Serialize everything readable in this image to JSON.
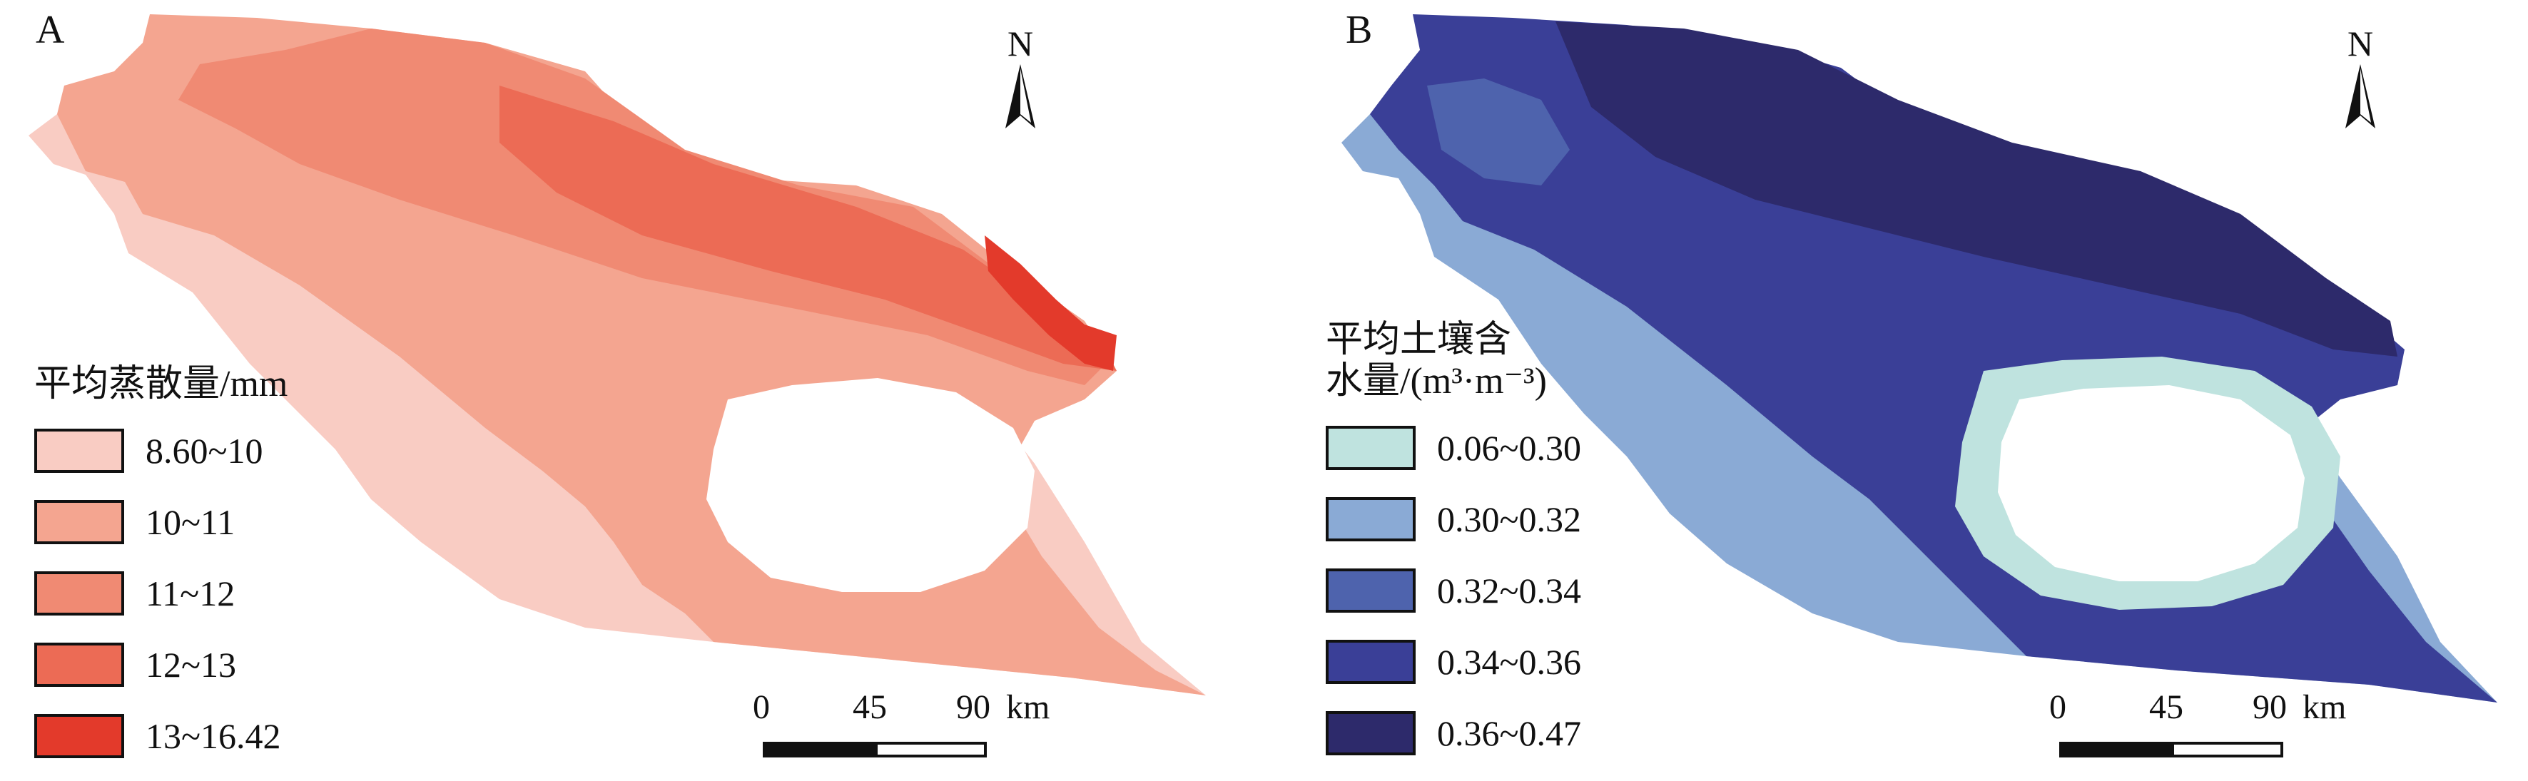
{
  "panels": [
    {
      "label": "A",
      "north_label": "N",
      "legend_title": "平均蒸散量/mm",
      "legend": [
        {
          "label": "8.60~10",
          "color": "#f9ccc3"
        },
        {
          "label": "10~11",
          "color": "#f4a590"
        },
        {
          "label": "11~12",
          "color": "#f08a73"
        },
        {
          "label": "12~13",
          "color": "#ec6b55"
        },
        {
          "label": "13~16.42",
          "color": "#e33a2b"
        }
      ],
      "scale": {
        "ticks": [
          "0",
          "45",
          "90"
        ],
        "unit": "km"
      }
    },
    {
      "label": "B",
      "north_label": "N",
      "legend_title_line1": "平均土壤含",
      "legend_title_line2": "水量/(m³·m⁻³)",
      "legend": [
        {
          "label": "0.06~0.30",
          "color": "#bfe3df"
        },
        {
          "label": "0.30~0.32",
          "color": "#8aaad5"
        },
        {
          "label": "0.32~0.34",
          "color": "#4e63ad"
        },
        {
          "label": "0.34~0.36",
          "color": "#3a3f97"
        },
        {
          "label": "0.36~0.47",
          "color": "#2d2a6b"
        }
      ],
      "scale": {
        "ticks": [
          "0",
          "45",
          "90"
        ],
        "unit": "km"
      }
    }
  ]
}
